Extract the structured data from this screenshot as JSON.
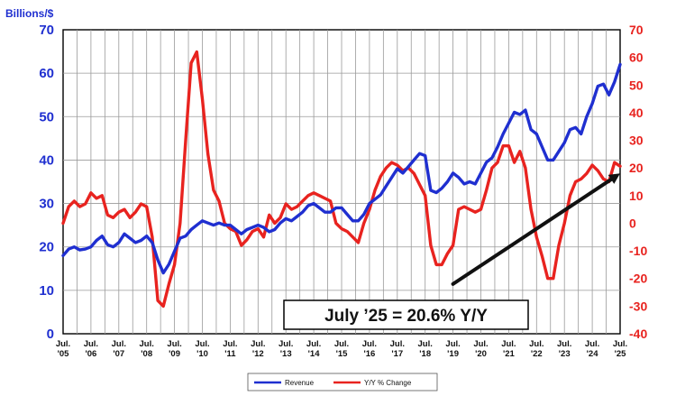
{
  "chart_data": {
    "type": "line",
    "ylabel": "Billions/$",
    "ylim_left": [
      0,
      70
    ],
    "ylim_right": [
      -40,
      70
    ],
    "yticks_left": [
      0,
      10,
      20,
      30,
      40,
      50,
      60,
      70
    ],
    "yticks_right": [
      -40,
      -30,
      -20,
      -10,
      0,
      10,
      20,
      30,
      40,
      50,
      60,
      70
    ],
    "x_range": [
      2005.5,
      2025.5
    ],
    "x_ticks": [
      {
        "x": 2005.5,
        "label": "Jul. '05"
      },
      {
        "x": 2006.5,
        "label": "Jul. '06"
      },
      {
        "x": 2007.5,
        "label": "Jul. '07"
      },
      {
        "x": 2008.5,
        "label": "Jul. '08"
      },
      {
        "x": 2009.5,
        "label": "Jul. '09"
      },
      {
        "x": 2010.5,
        "label": "Jul. '10"
      },
      {
        "x": 2011.5,
        "label": "Jul. '11"
      },
      {
        "x": 2012.5,
        "label": "Jul. '12"
      },
      {
        "x": 2013.5,
        "label": "Jul. '13"
      },
      {
        "x": 2014.5,
        "label": "Jul. '14"
      },
      {
        "x": 2015.5,
        "label": "Jul. '15"
      },
      {
        "x": 2016.5,
        "label": "Jul. '16"
      },
      {
        "x": 2017.5,
        "label": "Jul. '17"
      },
      {
        "x": 2018.5,
        "label": "Jul. '18"
      },
      {
        "x": 2019.5,
        "label": "Jul. '19"
      },
      {
        "x": 2020.5,
        "label": "Jul. '20"
      },
      {
        "x": 2021.5,
        "label": "Jul. '21"
      },
      {
        "x": 2022.5,
        "label": "Jul. '22"
      },
      {
        "x": 2023.5,
        "label": "Jul. '23"
      },
      {
        "x": 2024.5,
        "label": "Jul. '24"
      },
      {
        "x": 2025.5,
        "label": "Jul. '25"
      }
    ],
    "grid": true,
    "series": [
      {
        "name": "Revenue",
        "axis": "left",
        "color": "#1f2fd0",
        "points": [
          [
            2005.5,
            18
          ],
          [
            2005.7,
            19.5
          ],
          [
            2005.9,
            20
          ],
          [
            2006.1,
            19.3
          ],
          [
            2006.3,
            19.5
          ],
          [
            2006.5,
            20
          ],
          [
            2006.7,
            21.5
          ],
          [
            2006.9,
            22.5
          ],
          [
            2007.1,
            20.5
          ],
          [
            2007.3,
            20
          ],
          [
            2007.5,
            21
          ],
          [
            2007.7,
            23
          ],
          [
            2007.9,
            22
          ],
          [
            2008.1,
            21
          ],
          [
            2008.3,
            21.5
          ],
          [
            2008.5,
            22.5
          ],
          [
            2008.7,
            21
          ],
          [
            2008.9,
            17
          ],
          [
            2009.1,
            14
          ],
          [
            2009.3,
            16
          ],
          [
            2009.5,
            19
          ],
          [
            2009.7,
            22
          ],
          [
            2009.9,
            22.5
          ],
          [
            2010.1,
            24
          ],
          [
            2010.3,
            25
          ],
          [
            2010.5,
            26
          ],
          [
            2010.7,
            25.5
          ],
          [
            2010.9,
            25
          ],
          [
            2011.1,
            25.5
          ],
          [
            2011.3,
            25
          ],
          [
            2011.5,
            25
          ],
          [
            2011.7,
            24
          ],
          [
            2011.9,
            23
          ],
          [
            2012.1,
            24
          ],
          [
            2012.3,
            24.5
          ],
          [
            2012.5,
            25
          ],
          [
            2012.7,
            24.5
          ],
          [
            2012.9,
            23.5
          ],
          [
            2013.1,
            24
          ],
          [
            2013.3,
            25.5
          ],
          [
            2013.5,
            26.5
          ],
          [
            2013.7,
            26
          ],
          [
            2013.9,
            27
          ],
          [
            2014.1,
            28
          ],
          [
            2014.3,
            29.5
          ],
          [
            2014.5,
            30
          ],
          [
            2014.7,
            29
          ],
          [
            2014.9,
            28
          ],
          [
            2015.1,
            28
          ],
          [
            2015.3,
            29
          ],
          [
            2015.5,
            29
          ],
          [
            2015.7,
            27.5
          ],
          [
            2015.9,
            26
          ],
          [
            2016.1,
            26
          ],
          [
            2016.3,
            27.5
          ],
          [
            2016.5,
            30
          ],
          [
            2016.7,
            31
          ],
          [
            2016.9,
            32
          ],
          [
            2017.1,
            34
          ],
          [
            2017.3,
            36
          ],
          [
            2017.5,
            38
          ],
          [
            2017.7,
            37
          ],
          [
            2017.9,
            38.5
          ],
          [
            2018.1,
            40
          ],
          [
            2018.3,
            41.5
          ],
          [
            2018.5,
            41
          ],
          [
            2018.7,
            33
          ],
          [
            2018.9,
            32.5
          ],
          [
            2019.1,
            33.5
          ],
          [
            2019.3,
            35
          ],
          [
            2019.5,
            37
          ],
          [
            2019.7,
            36
          ],
          [
            2019.9,
            34.5
          ],
          [
            2020.1,
            35
          ],
          [
            2020.3,
            34.5
          ],
          [
            2020.5,
            37
          ],
          [
            2020.7,
            39.5
          ],
          [
            2020.9,
            40.5
          ],
          [
            2021.1,
            43
          ],
          [
            2021.3,
            46
          ],
          [
            2021.5,
            48.5
          ],
          [
            2021.7,
            51
          ],
          [
            2021.9,
            50.5
          ],
          [
            2022.1,
            51.5
          ],
          [
            2022.3,
            47
          ],
          [
            2022.5,
            46
          ],
          [
            2022.7,
            43
          ],
          [
            2022.9,
            40
          ],
          [
            2023.1,
            40
          ],
          [
            2023.3,
            42
          ],
          [
            2023.5,
            44
          ],
          [
            2023.7,
            47
          ],
          [
            2023.9,
            47.5
          ],
          [
            2024.1,
            46
          ],
          [
            2024.3,
            50
          ],
          [
            2024.5,
            53
          ],
          [
            2024.7,
            57
          ],
          [
            2024.9,
            57.5
          ],
          [
            2025.1,
            55
          ],
          [
            2025.3,
            58
          ],
          [
            2025.5,
            62
          ]
        ]
      },
      {
        "name": "Y/Y % Change",
        "axis": "right",
        "color": "#e8231f",
        "points": [
          [
            2005.5,
            0
          ],
          [
            2005.7,
            6
          ],
          [
            2005.9,
            8
          ],
          [
            2006.1,
            6
          ],
          [
            2006.3,
            7
          ],
          [
            2006.5,
            11
          ],
          [
            2006.7,
            9
          ],
          [
            2006.9,
            10
          ],
          [
            2007.1,
            3
          ],
          [
            2007.3,
            2
          ],
          [
            2007.5,
            4
          ],
          [
            2007.7,
            5
          ],
          [
            2007.9,
            2
          ],
          [
            2008.1,
            4
          ],
          [
            2008.3,
            7
          ],
          [
            2008.5,
            6
          ],
          [
            2008.7,
            -5
          ],
          [
            2008.9,
            -28
          ],
          [
            2009.1,
            -30
          ],
          [
            2009.3,
            -22
          ],
          [
            2009.5,
            -15
          ],
          [
            2009.7,
            0
          ],
          [
            2009.9,
            30
          ],
          [
            2010.1,
            58
          ],
          [
            2010.3,
            62
          ],
          [
            2010.5,
            45
          ],
          [
            2010.7,
            25
          ],
          [
            2010.9,
            12
          ],
          [
            2011.1,
            8
          ],
          [
            2011.3,
            0
          ],
          [
            2011.5,
            -2
          ],
          [
            2011.7,
            -3
          ],
          [
            2011.9,
            -8
          ],
          [
            2012.1,
            -6
          ],
          [
            2012.3,
            -3
          ],
          [
            2012.5,
            -2
          ],
          [
            2012.7,
            -5
          ],
          [
            2012.9,
            3
          ],
          [
            2013.1,
            0
          ],
          [
            2013.3,
            2
          ],
          [
            2013.5,
            7
          ],
          [
            2013.7,
            5
          ],
          [
            2013.9,
            6
          ],
          [
            2014.1,
            8
          ],
          [
            2014.3,
            10
          ],
          [
            2014.5,
            11
          ],
          [
            2014.7,
            10
          ],
          [
            2014.9,
            9
          ],
          [
            2015.1,
            8
          ],
          [
            2015.3,
            0
          ],
          [
            2015.5,
            -2
          ],
          [
            2015.7,
            -3
          ],
          [
            2015.9,
            -5
          ],
          [
            2016.1,
            -7
          ],
          [
            2016.3,
            0
          ],
          [
            2016.5,
            5
          ],
          [
            2016.7,
            12
          ],
          [
            2016.9,
            17
          ],
          [
            2017.1,
            20
          ],
          [
            2017.3,
            22
          ],
          [
            2017.5,
            21
          ],
          [
            2017.7,
            19
          ],
          [
            2017.9,
            20
          ],
          [
            2018.1,
            18
          ],
          [
            2018.3,
            14
          ],
          [
            2018.5,
            10
          ],
          [
            2018.7,
            -8
          ],
          [
            2018.9,
            -15
          ],
          [
            2019.1,
            -15
          ],
          [
            2019.3,
            -11
          ],
          [
            2019.5,
            -8
          ],
          [
            2019.7,
            5
          ],
          [
            2019.9,
            6
          ],
          [
            2020.1,
            5
          ],
          [
            2020.3,
            4
          ],
          [
            2020.5,
            5
          ],
          [
            2020.7,
            12
          ],
          [
            2020.9,
            20
          ],
          [
            2021.1,
            22
          ],
          [
            2021.3,
            28
          ],
          [
            2021.5,
            28
          ],
          [
            2021.7,
            22
          ],
          [
            2021.9,
            26
          ],
          [
            2022.1,
            20
          ],
          [
            2022.3,
            5
          ],
          [
            2022.5,
            -5
          ],
          [
            2022.7,
            -12
          ],
          [
            2022.9,
            -20
          ],
          [
            2023.1,
            -20
          ],
          [
            2023.3,
            -8
          ],
          [
            2023.5,
            0
          ],
          [
            2023.7,
            10
          ],
          [
            2023.9,
            15
          ],
          [
            2024.1,
            16
          ],
          [
            2024.3,
            18
          ],
          [
            2024.5,
            21
          ],
          [
            2024.7,
            19
          ],
          [
            2024.9,
            16
          ],
          [
            2025.1,
            15
          ],
          [
            2025.3,
            22
          ],
          [
            2025.5,
            20.6
          ]
        ]
      }
    ],
    "trend_arrow": {
      "from": [
        2019.5,
        -22
      ],
      "to": [
        2025.5,
        18
      ],
      "color": "#111111"
    },
    "annotation": {
      "text": "July ’25 = 20.6% Y/Y"
    },
    "legend": {
      "position": "bottom-center"
    }
  }
}
